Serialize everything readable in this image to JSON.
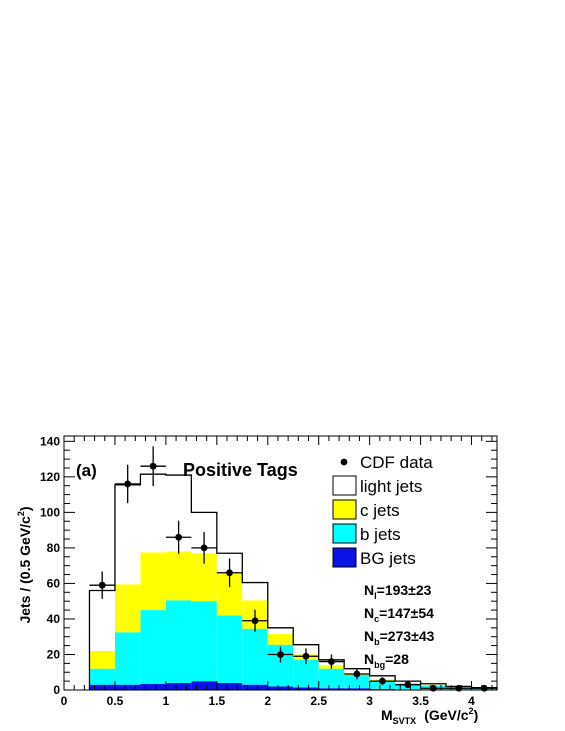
{
  "chart_data": {
    "type": "histogram",
    "panel_label": "(a)",
    "title": "Positive Tags",
    "ylabel_parts": {
      "main": "Jets / (0.5 GeV/c",
      "sup": "2",
      "end": ")"
    },
    "xlabel_parts": {
      "M": "M",
      "sub": "SVTX",
      "unit": "(GeV/c",
      "sup": "2",
      "end": ")"
    },
    "xlim": [
      0,
      4.25
    ],
    "ylim": [
      0,
      143
    ],
    "x_ticks": [
      {
        "v": 0,
        "label": "0"
      },
      {
        "v": 0.5,
        "label": "0.5"
      },
      {
        "v": 1,
        "label": "1"
      },
      {
        "v": 1.5,
        "label": "1.5"
      },
      {
        "v": 2,
        "label": "2"
      },
      {
        "v": 2.5,
        "label": "2.5"
      },
      {
        "v": 3,
        "label": "3"
      },
      {
        "v": 3.5,
        "label": "3.5"
      },
      {
        "v": 4,
        "label": "4"
      }
    ],
    "y_ticks": [
      {
        "v": 0,
        "label": "0"
      },
      {
        "v": 20,
        "label": "20"
      },
      {
        "v": 40,
        "label": "40"
      },
      {
        "v": 60,
        "label": "60"
      },
      {
        "v": 80,
        "label": "80"
      },
      {
        "v": 100,
        "label": "100"
      },
      {
        "v": 120,
        "label": "120"
      },
      {
        "v": 140,
        "label": "140"
      }
    ],
    "bins": [
      0.25,
      0.5,
      0.75,
      1.0,
      1.25,
      1.5,
      1.75,
      2.0,
      2.25,
      2.5,
      2.75,
      3.0,
      3.25,
      3.5,
      3.75,
      4.0,
      4.25
    ],
    "stack": [
      {
        "name": "BG jets",
        "color": "#0a14e6",
        "values": [
          3,
          3,
          3.5,
          4,
          5,
          4,
          3,
          2,
          1.5,
          1,
          1,
          0.6,
          0.4,
          0.3,
          0.2,
          0.2
        ]
      },
      {
        "name": "b jets",
        "color": "#00ffff",
        "values": [
          9,
          29.5,
          41.5,
          46.5,
          45,
          38,
          31.5,
          23.5,
          15.5,
          11,
          7.5,
          4.6,
          3.1,
          2.2,
          1.3,
          0.8
        ]
      },
      {
        "name": "c jets",
        "color": "#ffff00",
        "values": [
          10,
          27,
          32.5,
          27.5,
          27,
          24,
          16,
          6,
          3,
          2,
          1,
          0.8,
          0.5,
          0.5,
          0.3,
          0.2
        ]
      },
      {
        "name": "light jets",
        "color": "#ffffff",
        "values": [
          34,
          56,
          44,
          43,
          23,
          11,
          10,
          3.5,
          5.5,
          3,
          2.5,
          2,
          1,
          0.5,
          0.2,
          0.1
        ]
      }
    ],
    "data_points": {
      "name": "CDF data",
      "x": [
        0.375,
        0.625,
        0.875,
        1.125,
        1.375,
        1.625,
        1.875,
        2.125,
        2.375,
        2.625,
        2.875,
        3.125,
        3.375,
        3.625,
        3.875,
        4.125
      ],
      "y": [
        59,
        116,
        126,
        86,
        80,
        66,
        39,
        20,
        19,
        16,
        9,
        5,
        3,
        1,
        1,
        1
      ],
      "yerr": [
        7.7,
        10.8,
        11.2,
        9.3,
        8.9,
        8.1,
        6.2,
        4.5,
        4.4,
        4.0,
        3.0,
        2.2,
        1.7,
        1.0,
        1.0,
        1.0
      ]
    },
    "legend": [
      {
        "label": "CDF data",
        "kind": "marker"
      },
      {
        "label": "light jets",
        "kind": "box",
        "color": "#ffffff"
      },
      {
        "label": "c jets",
        "kind": "box",
        "color": "#ffff00"
      },
      {
        "label": "b jets",
        "kind": "box",
        "color": "#00ffff"
      },
      {
        "label": "BG jets",
        "kind": "box",
        "color": "#0a14e6"
      }
    ],
    "fit_results": [
      {
        "N": "N",
        "sub": "l",
        "rest": "=193±23"
      },
      {
        "N": "N",
        "sub": "c",
        "rest": "=147±54"
      },
      {
        "N": "N",
        "sub": "b",
        "rest": "=273±43"
      },
      {
        "N": "N",
        "sub": "bg",
        "rest": "=28"
      }
    ]
  }
}
